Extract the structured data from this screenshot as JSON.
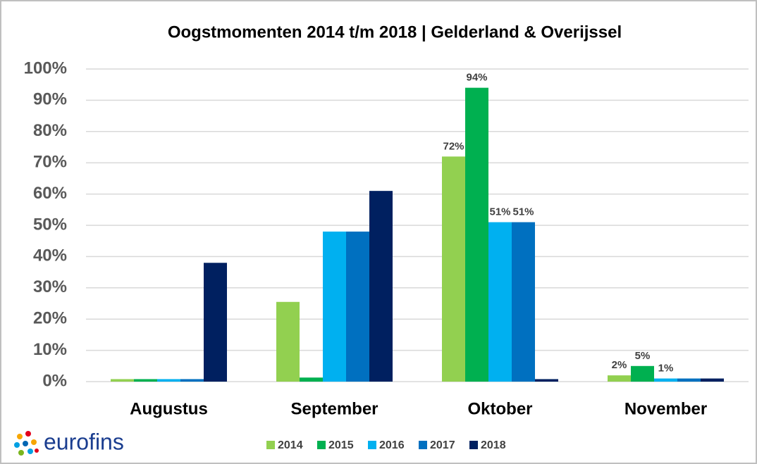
{
  "chart_data": {
    "type": "bar",
    "title": "Oogstmomenten 2014 t/m 2018 | Gelderland & Overijssel",
    "logo": "eurofins",
    "categories": [
      "Augustus",
      "September",
      "Oktober",
      "November"
    ],
    "series": [
      {
        "name": "2014",
        "color": "#92d050",
        "values": [
          0.8,
          25.5,
          72,
          2
        ],
        "value_labels": [
          null,
          null,
          "72%",
          "2%"
        ]
      },
      {
        "name": "2015",
        "color": "#00b050",
        "values": [
          0.8,
          1.3,
          94,
          5
        ],
        "value_labels": [
          null,
          null,
          "94%",
          "5%"
        ]
      },
      {
        "name": "2016",
        "color": "#00b0f0",
        "values": [
          0.8,
          48,
          51,
          1
        ],
        "value_labels": [
          null,
          null,
          "51%",
          "1%"
        ]
      },
      {
        "name": "2017",
        "color": "#0070c0",
        "values": [
          0.8,
          48,
          51,
          1
        ],
        "value_labels": [
          null,
          null,
          "51%",
          null
        ]
      },
      {
        "name": "2018",
        "color": "#002060",
        "values": [
          38,
          61,
          0.8,
          1
        ],
        "value_labels": [
          null,
          null,
          null,
          null
        ]
      }
    ],
    "ylim": [
      0,
      100
    ],
    "yticks": [
      {
        "value": 0,
        "label": "0%"
      },
      {
        "value": 10,
        "label": "10%"
      },
      {
        "value": 20,
        "label": "20%"
      },
      {
        "value": 30,
        "label": "30%"
      },
      {
        "value": 40,
        "label": "40%"
      },
      {
        "value": 50,
        "label": "50%"
      },
      {
        "value": 60,
        "label": "60%"
      },
      {
        "value": 70,
        "label": "70%"
      },
      {
        "value": 80,
        "label": "80%"
      },
      {
        "value": 90,
        "label": "90%"
      },
      {
        "value": 100,
        "label": "100%"
      }
    ],
    "grid": true
  }
}
